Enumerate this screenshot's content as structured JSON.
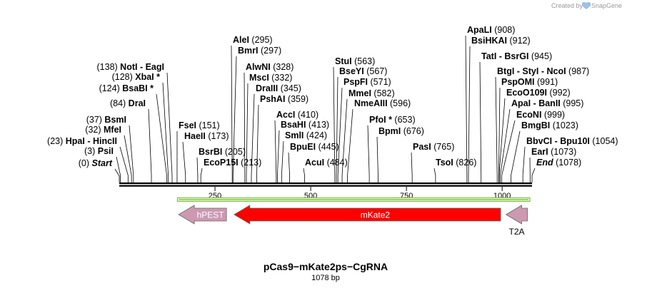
{
  "credit": {
    "prefix": "Created by",
    "brand": "SnapGene"
  },
  "title": "pCas9−mKate2ps−CgRNA",
  "length_label": "1078 bp",
  "length_bp": 1078,
  "ticks": [
    {
      "bp": 250,
      "label": "250"
    },
    {
      "bp": 500,
      "label": "500"
    },
    {
      "bp": 750,
      "label": "750"
    },
    {
      "bp": 1000,
      "label": "1000"
    }
  ],
  "sites": [
    {
      "pos_label": "(0)",
      "pos": 0,
      "names": [
        "Start"
      ],
      "italic": true
    },
    {
      "pos_label": "(3)",
      "pos": 3,
      "names": [
        "PsiI"
      ]
    },
    {
      "pos_label": "(23)",
      "pos": 23,
      "names": [
        "HpaI",
        "HincII"
      ]
    },
    {
      "pos_label": "(32)",
      "pos": 32,
      "names": [
        "MfeI"
      ]
    },
    {
      "pos_label": "(37)",
      "pos": 37,
      "names": [
        "BsmI"
      ]
    },
    {
      "pos_label": "(84)",
      "pos": 84,
      "names": [
        "DraI"
      ]
    },
    {
      "pos_label": "(124)",
      "pos": 124,
      "names": [
        "BsaBI *"
      ]
    },
    {
      "pos_label": "(128)",
      "pos": 128,
      "names": [
        "XbaI *"
      ]
    },
    {
      "pos_label": "(138)",
      "pos": 138,
      "names": [
        "NotI",
        "EagI"
      ]
    },
    {
      "pos_label": "(151)",
      "pos": 151,
      "names": [
        "FseI"
      ],
      "label_right": true
    },
    {
      "pos_label": "(173)",
      "pos": 173,
      "names": [
        "HaeII"
      ],
      "label_right": true
    },
    {
      "pos_label": "(205)",
      "pos": 205,
      "names": [
        "BsrBI"
      ],
      "label_right": true
    },
    {
      "pos_label": "(213)",
      "pos": 213,
      "names": [
        "EcoP15I"
      ],
      "label_right": true
    },
    {
      "pos_label": "(295)",
      "pos": 295,
      "names": [
        "AleI"
      ]
    },
    {
      "pos_label": "(297)",
      "pos": 297,
      "names": [
        "BmrI"
      ]
    },
    {
      "pos_label": "(328)",
      "pos": 328,
      "names": [
        "AlwNI"
      ]
    },
    {
      "pos_label": "(332)",
      "pos": 332,
      "names": [
        "MscI"
      ]
    },
    {
      "pos_label": "(345)",
      "pos": 345,
      "names": [
        "DraIII"
      ]
    },
    {
      "pos_label": "(359)",
      "pos": 359,
      "names": [
        "PshAI"
      ]
    },
    {
      "pos_label": "(410)",
      "pos": 410,
      "names": [
        "AccI"
      ]
    },
    {
      "pos_label": "(413)",
      "pos": 413,
      "names": [
        "BsaHI"
      ]
    },
    {
      "pos_label": "(424)",
      "pos": 424,
      "names": [
        "SmlI"
      ]
    },
    {
      "pos_label": "(445)",
      "pos": 445,
      "names": [
        "BpuEI"
      ]
    },
    {
      "pos_label": "(484)",
      "pos": 484,
      "names": [
        "AcuI"
      ]
    },
    {
      "pos_label": "(563)",
      "pos": 563,
      "names": [
        "StuI"
      ]
    },
    {
      "pos_label": "(567)",
      "pos": 567,
      "names": [
        "BseYI"
      ]
    },
    {
      "pos_label": "(571)",
      "pos": 571,
      "names": [
        "PspFI"
      ]
    },
    {
      "pos_label": "(582)",
      "pos": 582,
      "names": [
        "MmeI"
      ]
    },
    {
      "pos_label": "(596)",
      "pos": 596,
      "names": [
        "NmeAIII"
      ]
    },
    {
      "pos_label": "(653)",
      "pos": 653,
      "names": [
        "PfoI *"
      ]
    },
    {
      "pos_label": "(676)",
      "pos": 676,
      "names": [
        "BpmI"
      ]
    },
    {
      "pos_label": "(765)",
      "pos": 765,
      "names": [
        "PasI"
      ]
    },
    {
      "pos_label": "(826)",
      "pos": 826,
      "names": [
        "TsoI"
      ]
    },
    {
      "pos_label": "(908)",
      "pos": 908,
      "names": [
        "ApaLI"
      ]
    },
    {
      "pos_label": "(912)",
      "pos": 912,
      "names": [
        "BsiHKAI"
      ]
    },
    {
      "pos_label": "(945)",
      "pos": 945,
      "names": [
        "TatI",
        "BsrGI"
      ]
    },
    {
      "pos_label": "(987)",
      "pos": 987,
      "names": [
        "BtgI",
        "StyI",
        "NcoI"
      ]
    },
    {
      "pos_label": "(991)",
      "pos": 991,
      "names": [
        "PspOMI"
      ]
    },
    {
      "pos_label": "(992)",
      "pos": 992,
      "names": [
        "EcoO109I"
      ]
    },
    {
      "pos_label": "(995)",
      "pos": 995,
      "names": [
        "ApaI",
        "BanII"
      ]
    },
    {
      "pos_label": "(999)",
      "pos": 999,
      "names": [
        "EcoNI"
      ]
    },
    {
      "pos_label": "(1023)",
      "pos": 1023,
      "names": [
        "BmgBI"
      ]
    },
    {
      "pos_label": "(1054)",
      "pos": 1054,
      "names": [
        "BbvCI",
        "Bpu10I"
      ]
    },
    {
      "pos_label": "(1073)",
      "pos": 1073,
      "names": [
        "EarI"
      ]
    },
    {
      "pos_label": "(1078)",
      "pos": 1078,
      "names": [
        "End"
      ],
      "italic": true
    }
  ],
  "features": [
    {
      "name": "hPEST",
      "color": "#cc99b1",
      "start": 155,
      "end": 280,
      "direction": "reverse",
      "label_inside": true,
      "text_color": "#ffffff"
    },
    {
      "name": "mKate2",
      "color": "#ff0000",
      "start": 300,
      "end": 996,
      "direction": "reverse",
      "label_inside": true,
      "text_color": "#ffffff"
    },
    {
      "name": "T2A",
      "color": "#cc99b1",
      "start": 1010,
      "end": 1066,
      "direction": "reverse",
      "label_inside": false,
      "text_color": "#000000"
    }
  ],
  "orf": {
    "start": 152,
    "end": 1078,
    "color": "#7fc241",
    "direction": "reverse"
  },
  "colors": {
    "backbone": "#000000",
    "site_line": "#000000"
  }
}
